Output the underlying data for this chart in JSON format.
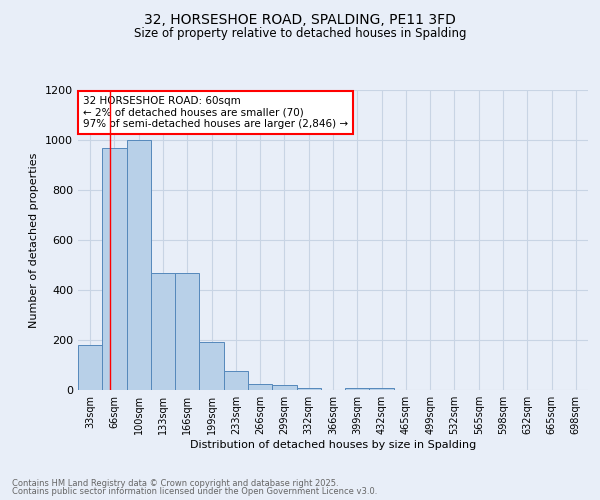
{
  "title": "32, HORSESHOE ROAD, SPALDING, PE11 3FD",
  "subtitle": "Size of property relative to detached houses in Spalding",
  "xlabel": "Distribution of detached houses by size in Spalding",
  "ylabel": "Number of detached properties",
  "footer1": "Contains HM Land Registry data © Crown copyright and database right 2025.",
  "footer2": "Contains public sector information licensed under the Open Government Licence v3.0.",
  "annotation_line1": "32 HORSESHOE ROAD: 60sqm",
  "annotation_line2": "← 2% of detached houses are smaller (70)",
  "annotation_line3": "97% of semi-detached houses are larger (2,846) →",
  "bins": [
    "33sqm",
    "66sqm",
    "100sqm",
    "133sqm",
    "166sqm",
    "199sqm",
    "233sqm",
    "266sqm",
    "299sqm",
    "332sqm",
    "366sqm",
    "399sqm",
    "432sqm",
    "465sqm",
    "499sqm",
    "532sqm",
    "565sqm",
    "598sqm",
    "632sqm",
    "665sqm",
    "698sqm"
  ],
  "values": [
    180,
    970,
    1000,
    470,
    470,
    193,
    75,
    25,
    20,
    10,
    0,
    10,
    10,
    0,
    0,
    0,
    0,
    0,
    0,
    0,
    0
  ],
  "bar_color": "#b8d0e8",
  "bar_edge_color": "#5588bb",
  "grid_color": "#c8d4e4",
  "background_color": "#e8eef8",
  "ylim": [
    0,
    1200
  ],
  "yticks": [
    0,
    200,
    400,
    600,
    800,
    1000,
    1200
  ]
}
